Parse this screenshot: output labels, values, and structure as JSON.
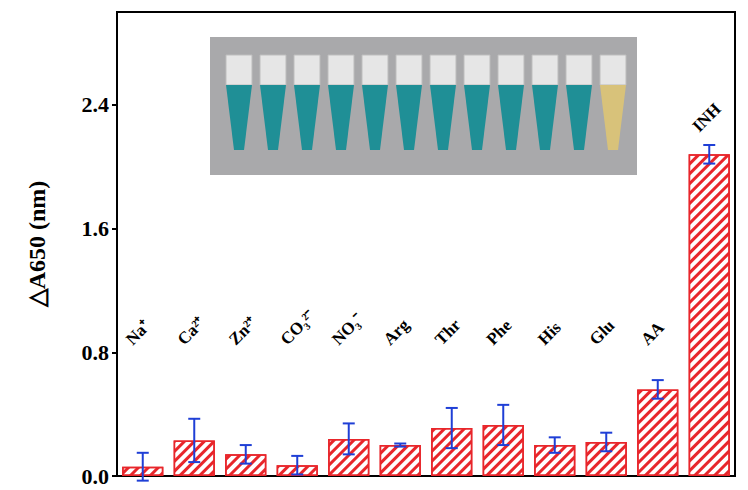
{
  "chart_data": {
    "type": "bar",
    "y_label": "△A650 (nm)",
    "categories": [
      "Na⁺",
      "Ca²⁺",
      "Zn²⁺",
      "CO₃²⁻",
      "NO₃⁻",
      "Arg",
      "Thr",
      "Phe",
      "His",
      "Glu",
      "AA",
      "INH"
    ],
    "values": [
      0.06,
      0.23,
      0.14,
      0.07,
      0.24,
      0.2,
      0.31,
      0.33,
      0.2,
      0.22,
      0.56,
      2.08
    ],
    "errors": [
      0.09,
      0.14,
      0.06,
      0.06,
      0.1,
      0.01,
      0.13,
      0.13,
      0.05,
      0.06,
      0.06,
      0.06
    ],
    "color": "#e8262b",
    "ylim": [
      0,
      3.0
    ],
    "yticks": [
      {
        "value": 0,
        "label": "0.0"
      },
      0.8,
      1.6,
      2.4
    ],
    "grid": false,
    "tick_labels": "y"
  }
}
